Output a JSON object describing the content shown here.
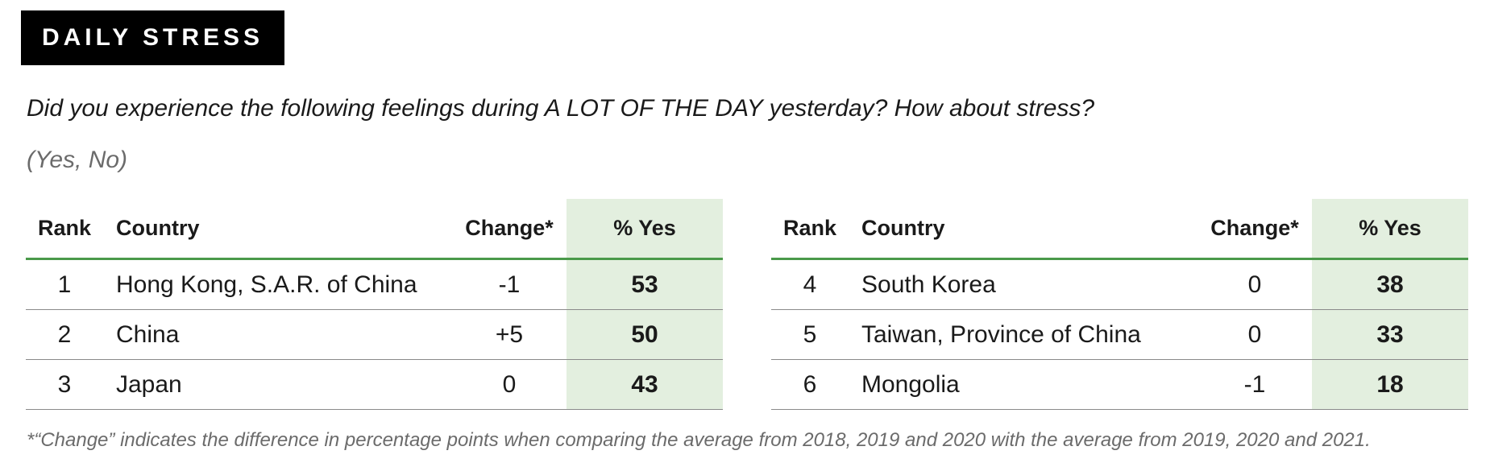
{
  "badge": "DAILY STRESS",
  "question": "Did you experience the following feelings during A LOT OF THE DAY yesterday? How about stress?",
  "options": "(Yes, No)",
  "columns": {
    "rank": "Rank",
    "country": "Country",
    "change": "Change*",
    "yes": "% Yes"
  },
  "left_rows": [
    {
      "rank": "1",
      "country": "Hong Kong, S.A.R. of China",
      "change": "-1",
      "yes": "53"
    },
    {
      "rank": "2",
      "country": "China",
      "change": "+5",
      "yes": "50"
    },
    {
      "rank": "3",
      "country": "Japan",
      "change": "0",
      "yes": "43"
    }
  ],
  "right_rows": [
    {
      "rank": "4",
      "country": "South Korea",
      "change": "0",
      "yes": "38"
    },
    {
      "rank": "5",
      "country": "Taiwan, Province of China",
      "change": "0",
      "yes": "33"
    },
    {
      "rank": "6",
      "country": "Mongolia",
      "change": "-1",
      "yes": "18"
    }
  ],
  "footnote": "*“Change” indicates the difference in percentage points when comparing the average from 2018, 2019 and 2020 with the average from 2019, 2020 and 2021.",
  "colors": {
    "badge_bg": "#000000",
    "highlight_column": "#e3efdf",
    "header_rule": "#4a9a4a"
  }
}
